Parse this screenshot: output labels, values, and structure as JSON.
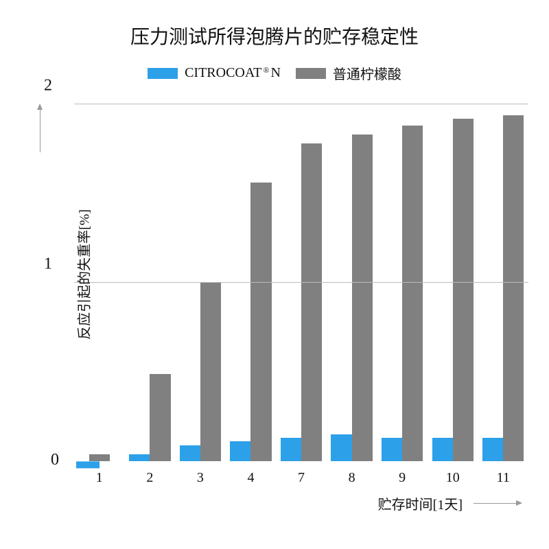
{
  "title": "压力测试所得泡腾片的贮存稳定性",
  "legend": {
    "series1_label_pre": "CITROCOAT",
    "series1_label_post": " N",
    "series1_reg": "®",
    "series2_label": "普通柠檬酸"
  },
  "colors": {
    "blue": "#2ca0e8",
    "gray": "#808080",
    "grid": "#bbbbbb",
    "text": "#111111",
    "background": "#ffffff"
  },
  "chart": {
    "type": "bar",
    "ymax": 2,
    "ymin": -0.08,
    "yticks": [
      0,
      1,
      2
    ],
    "gridlines": [
      1,
      2
    ],
    "categories": [
      "1",
      "2",
      "3",
      "4",
      "7",
      "8",
      "9",
      "10",
      "11"
    ],
    "series1": [
      -0.04,
      0.04,
      0.09,
      0.11,
      0.13,
      0.15,
      0.13,
      0.13,
      0.13
    ],
    "series2": [
      0.04,
      0.49,
      1.0,
      1.56,
      1.78,
      1.83,
      1.88,
      1.92,
      1.94
    ],
    "bar_width_pct": 46,
    "title_fontsize": 28,
    "label_fontsize": 20,
    "tick_fontsize": 20
  },
  "axes": {
    "ylabel": "反应引起的失重率[%]",
    "xlabel": "贮存时间[1天]",
    "origin_label": "0"
  }
}
